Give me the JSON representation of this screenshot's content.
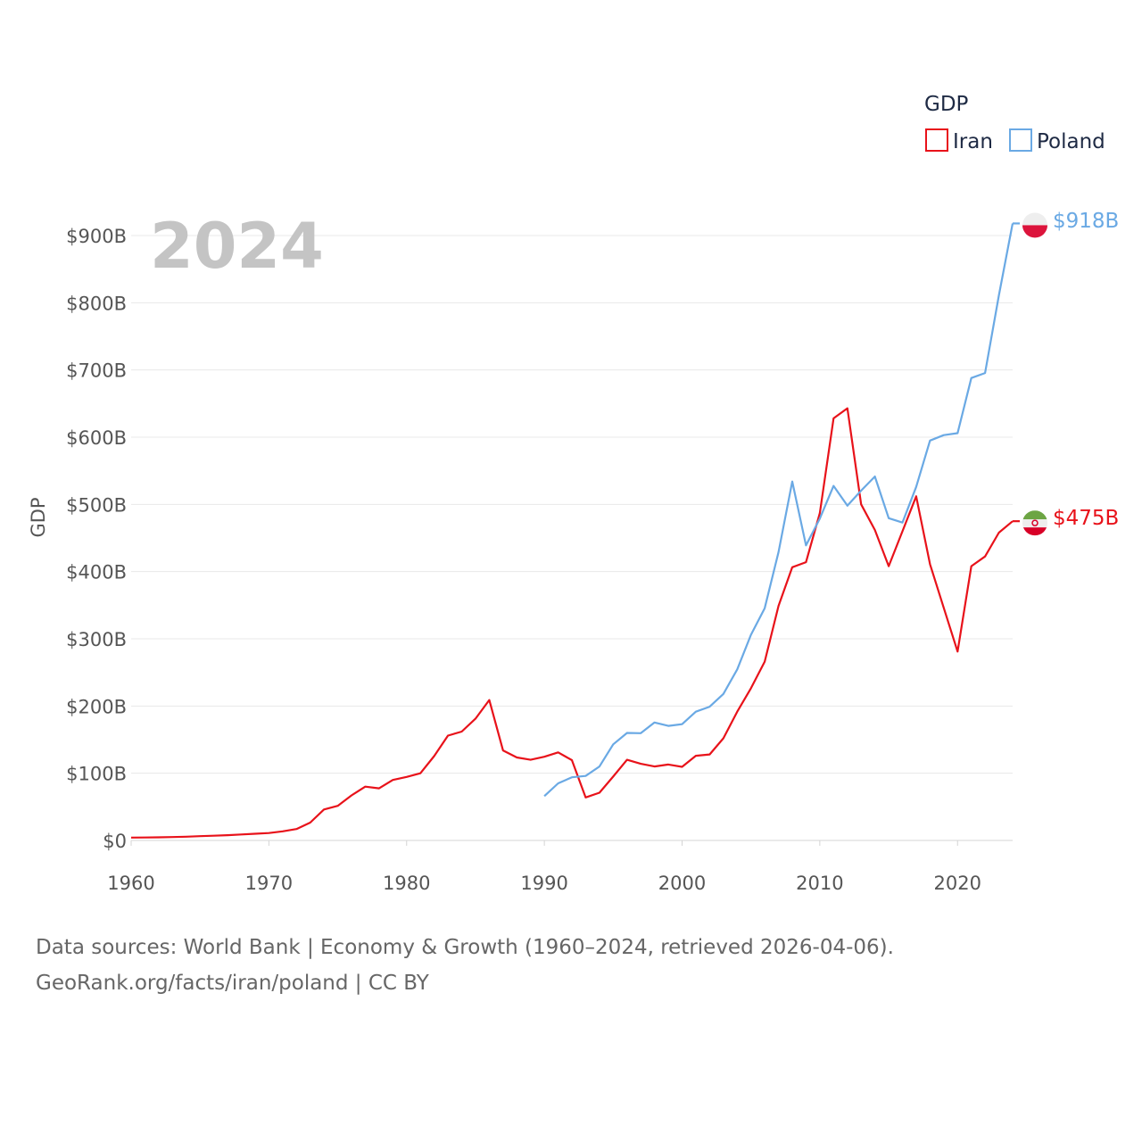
{
  "chart_data": {
    "type": "line",
    "title": "GDP",
    "year_label": "2024",
    "ylabel": "GDP",
    "xlabel": "",
    "xlim": [
      1960,
      2024
    ],
    "ylim": [
      0,
      900
    ],
    "x_ticks": [
      1960,
      1970,
      1980,
      1990,
      2000,
      2010,
      2020
    ],
    "x_tick_labels": [
      "1960",
      "1970",
      "1980",
      "1990",
      "2000",
      "2010",
      "2020"
    ],
    "y_ticks": [
      0,
      100,
      200,
      300,
      400,
      500,
      600,
      700,
      800,
      900
    ],
    "y_tick_labels": [
      "$0",
      "$100B",
      "$200B",
      "$300B",
      "$400B",
      "$500B",
      "$600B",
      "$700B",
      "$800B",
      "$900B"
    ],
    "grid": true,
    "legend_position": "top-right",
    "series": [
      {
        "name": "Iran",
        "color": "#e8121a",
        "end_label": "$475B",
        "flag_icon": "iran-flag-icon",
        "x": [
          1960,
          1961,
          1962,
          1963,
          1964,
          1965,
          1966,
          1967,
          1968,
          1969,
          1970,
          1971,
          1972,
          1973,
          1974,
          1975,
          1976,
          1977,
          1978,
          1979,
          1980,
          1981,
          1982,
          1983,
          1984,
          1985,
          1986,
          1987,
          1988,
          1989,
          1990,
          1991,
          1992,
          1993,
          1994,
          1995,
          1996,
          1997,
          1998,
          1999,
          2000,
          2001,
          2002,
          2003,
          2004,
          2005,
          2006,
          2007,
          2008,
          2009,
          2010,
          2011,
          2012,
          2013,
          2014,
          2015,
          2016,
          2017,
          2018,
          2019,
          2020,
          2021,
          2022,
          2023,
          2024
        ],
        "values": [
          4.2,
          4.4,
          4.7,
          5.0,
          5.6,
          6.4,
          7.0,
          7.8,
          8.9,
          9.9,
          11,
          13.5,
          17,
          26.5,
          46,
          51.5,
          67,
          80,
          77.5,
          90,
          94.5,
          100,
          125.5,
          156,
          162,
          181,
          209,
          134,
          123.5,
          120,
          124.5,
          131,
          119.5,
          64,
          71,
          95,
          120,
          114,
          110,
          113,
          109.5,
          126,
          128,
          152,
          191.5,
          226.5,
          266,
          349,
          406.5,
          414,
          487,
          628,
          643,
          500,
          462,
          408,
          460,
          512,
          411,
          346,
          281,
          408,
          422.5,
          458,
          475
        ]
      },
      {
        "name": "Poland",
        "color": "#6aa9e4",
        "end_label": "$918B",
        "flag_icon": "poland-flag-icon",
        "x": [
          1990,
          1991,
          1992,
          1993,
          1994,
          1995,
          1996,
          1997,
          1998,
          1999,
          2000,
          2001,
          2002,
          2003,
          2004,
          2005,
          2006,
          2007,
          2008,
          2009,
          2010,
          2011,
          2012,
          2013,
          2014,
          2015,
          2016,
          2017,
          2018,
          2019,
          2020,
          2021,
          2022,
          2023,
          2024
        ],
        "values": [
          66,
          85,
          94,
          96,
          110,
          143,
          160,
          159.5,
          175.5,
          170.5,
          173,
          191.5,
          199,
          218,
          254.5,
          306,
          345.5,
          429,
          534,
          439,
          479,
          527.5,
          498,
          520.5,
          541.5,
          479.5,
          473,
          526,
          595,
          603,
          606,
          688,
          695.5,
          811,
          918
        ]
      }
    ]
  },
  "footer": {
    "line1": "Data sources: World Bank | Economy & Growth (1960–2024, retrieved 2026-04-06).",
    "line2": "GeoRank.org/facts/iran/poland | CC BY"
  }
}
